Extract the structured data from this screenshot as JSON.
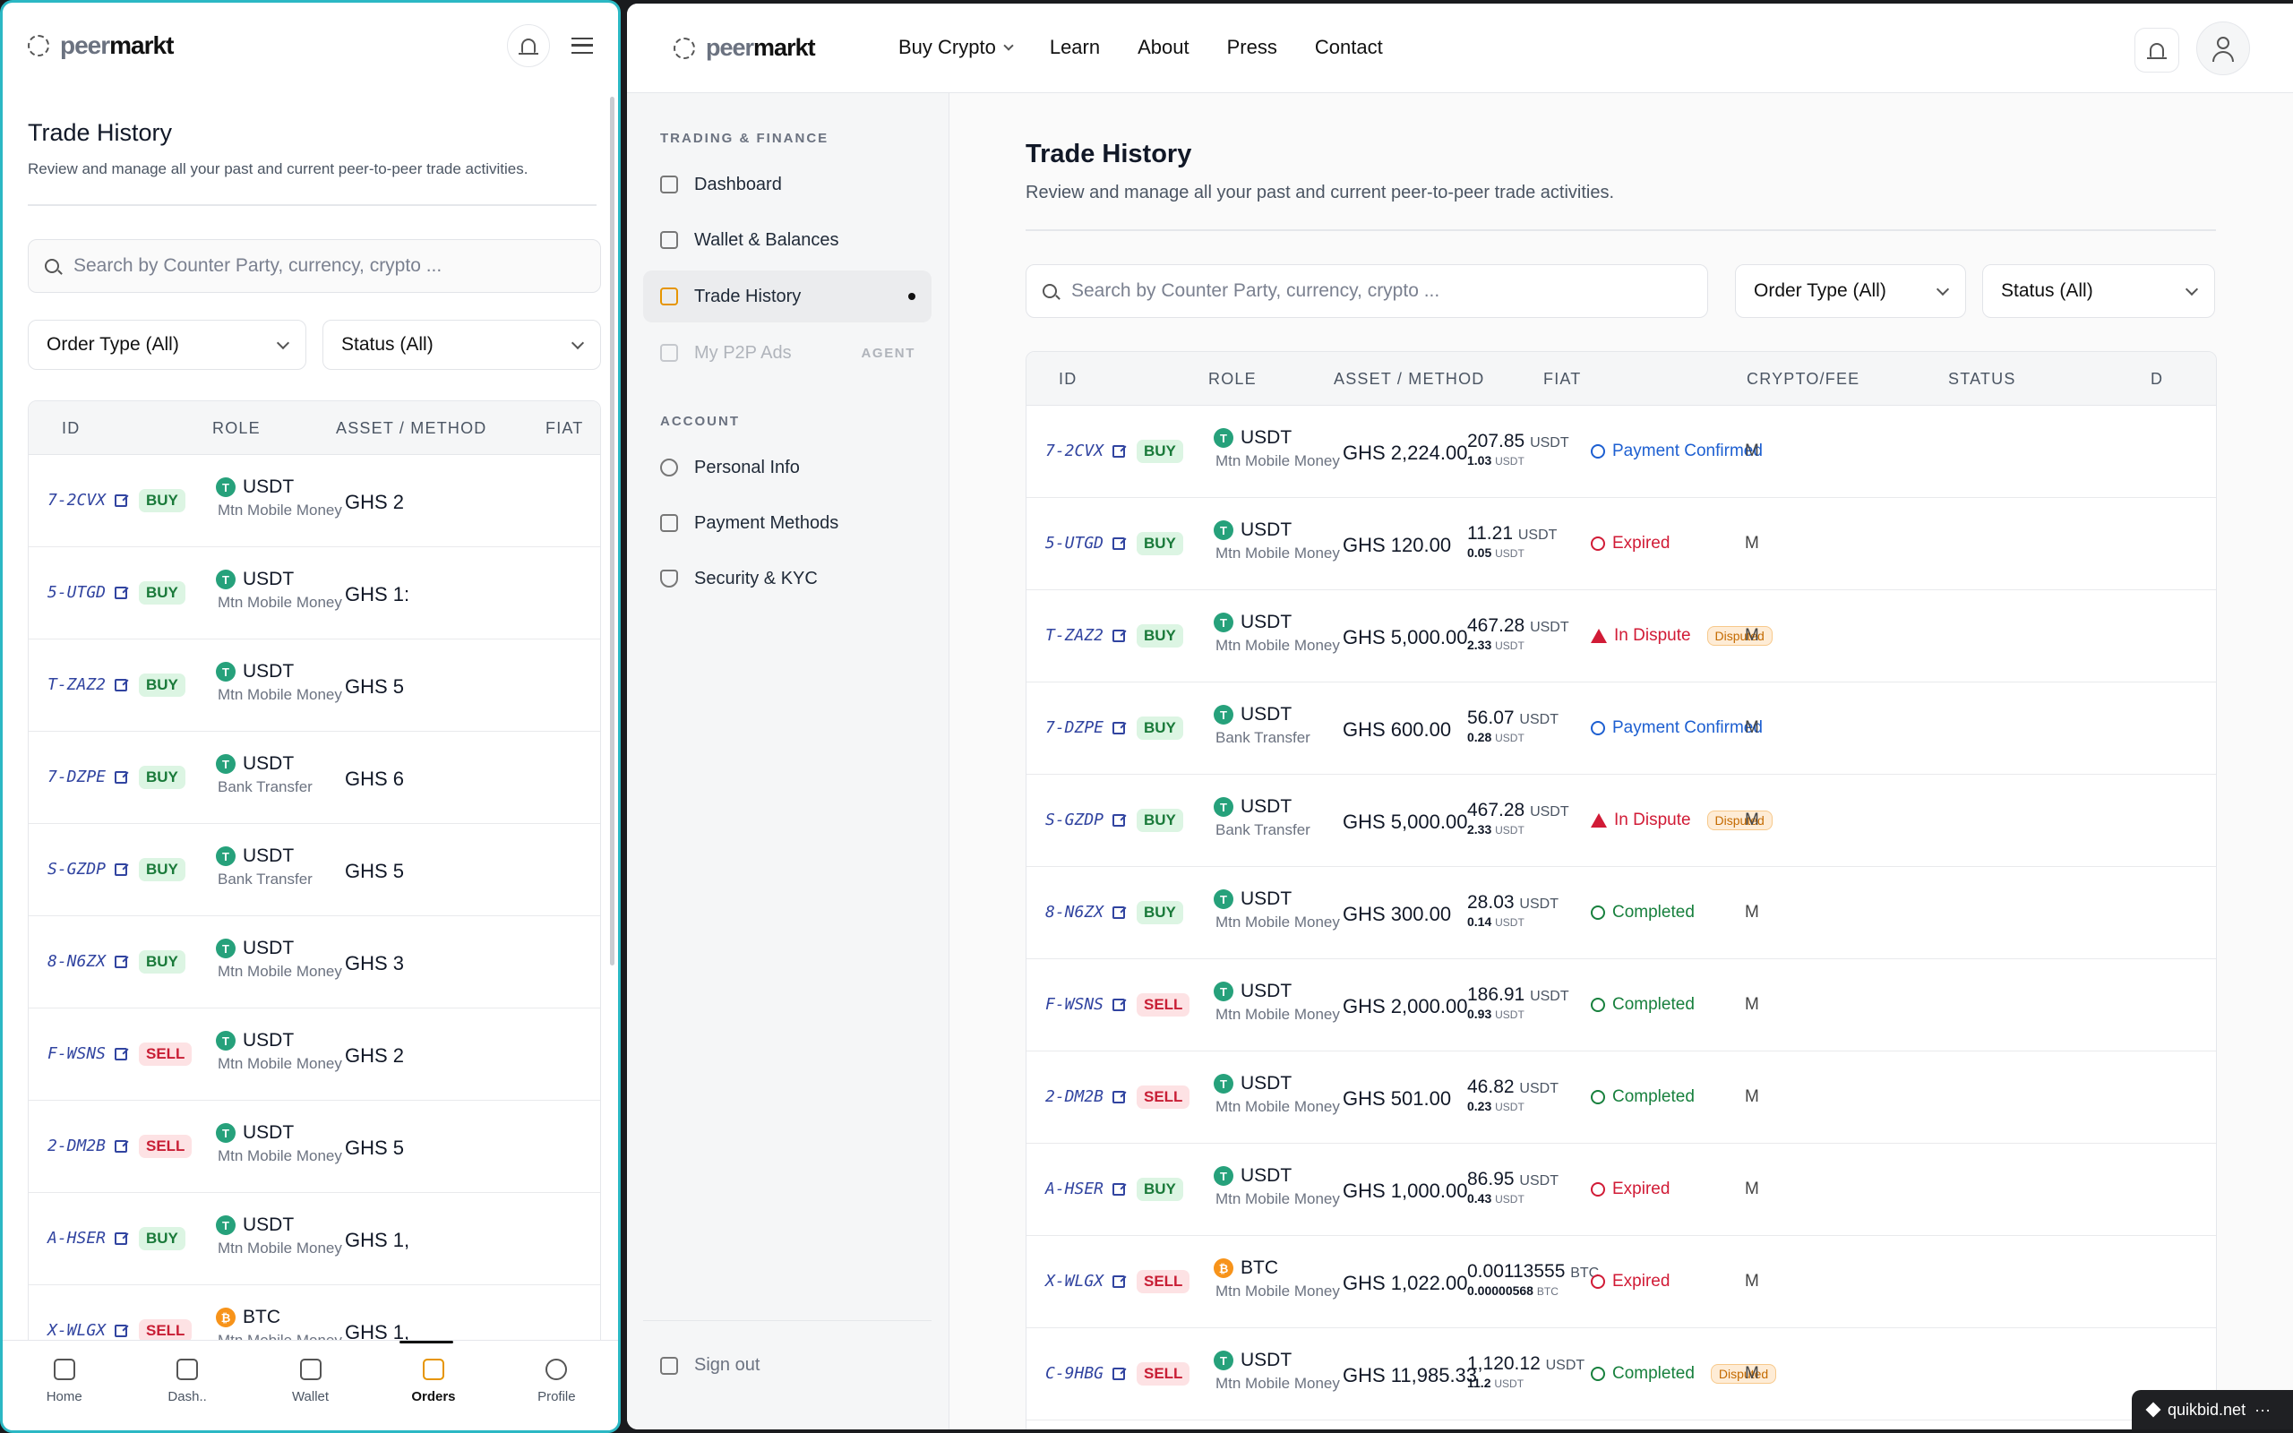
{
  "brand": {
    "part1": "peer",
    "part2": "markt"
  },
  "nav": {
    "items": [
      "Buy Crypto",
      "Learn",
      "About",
      "Press",
      "Contact"
    ]
  },
  "page": {
    "title": "Trade History",
    "subtitle": "Review and manage all your past and current peer-to-peer trade activities.",
    "search_placeholder": "Search by Counter Party, currency, crypto ...",
    "order_type": "Order Type (All)",
    "status_filter": "Status (All)"
  },
  "sidebar": {
    "section1": "TRADING & FINANCE",
    "section2": "ACCOUNT",
    "items": [
      "Dashboard",
      "Wallet & Balances",
      "Trade History",
      "My P2P Ads",
      "Personal Info",
      "Payment Methods",
      "Security & KYC"
    ],
    "agent_tag": "AGENT",
    "signout": "Sign out"
  },
  "table": {
    "headers": [
      "ID",
      "ROLE",
      "ASSET / METHOD",
      "FIAT",
      "CRYPTO/FEE",
      "STATUS",
      "D"
    ],
    "rows": [
      {
        "id": "7-2CVX",
        "role": "BUY",
        "asset": "USDT",
        "coin": "T",
        "method": "Mtn Mobile Money",
        "fiat": "GHS 2,224.00",
        "fiat_cut": "GHS 2",
        "crypto": "207.85",
        "fee": "1.03",
        "unit": "USDT",
        "status": "Payment Confirmed",
        "stype": "pc",
        "disputed": ""
      },
      {
        "id": "5-UTGD",
        "role": "BUY",
        "asset": "USDT",
        "coin": "T",
        "method": "Mtn Mobile Money",
        "fiat": "GHS 120.00",
        "fiat_cut": "GHS 1:",
        "crypto": "11.21",
        "fee": "0.05",
        "unit": "USDT",
        "status": "Expired",
        "stype": "ex",
        "disputed": ""
      },
      {
        "id": "T-ZAZ2",
        "role": "BUY",
        "asset": "USDT",
        "coin": "T",
        "method": "Mtn Mobile Money",
        "fiat": "GHS 5,000.00",
        "fiat_cut": "GHS 5",
        "crypto": "467.28",
        "fee": "2.33",
        "unit": "USDT",
        "status": "In Dispute",
        "stype": "dp",
        "disputed": "Disputed"
      },
      {
        "id": "7-DZPE",
        "role": "BUY",
        "asset": "USDT",
        "coin": "T",
        "method": "Bank Transfer",
        "fiat": "GHS 600.00",
        "fiat_cut": "GHS 6",
        "crypto": "56.07",
        "fee": "0.28",
        "unit": "USDT",
        "status": "Payment Confirmed",
        "stype": "pc",
        "disputed": ""
      },
      {
        "id": "S-GZDP",
        "role": "BUY",
        "asset": "USDT",
        "coin": "T",
        "method": "Bank Transfer",
        "fiat": "GHS 5,000.00",
        "fiat_cut": "GHS 5",
        "crypto": "467.28",
        "fee": "2.33",
        "unit": "USDT",
        "status": "In Dispute",
        "stype": "dp",
        "disputed": "Disputed"
      },
      {
        "id": "8-N6ZX",
        "role": "BUY",
        "asset": "USDT",
        "coin": "T",
        "method": "Mtn Mobile Money",
        "fiat": "GHS 300.00",
        "fiat_cut": "GHS 3",
        "crypto": "28.03",
        "fee": "0.14",
        "unit": "USDT",
        "status": "Completed",
        "stype": "co",
        "disputed": ""
      },
      {
        "id": "F-WSNS",
        "role": "SELL",
        "asset": "USDT",
        "coin": "T",
        "method": "Mtn Mobile Money",
        "fiat": "GHS 2,000.00",
        "fiat_cut": "GHS 2",
        "crypto": "186.91",
        "fee": "0.93",
        "unit": "USDT",
        "status": "Completed",
        "stype": "co",
        "disputed": ""
      },
      {
        "id": "2-DM2B",
        "role": "SELL",
        "asset": "USDT",
        "coin": "T",
        "method": "Mtn Mobile Money",
        "fiat": "GHS 501.00",
        "fiat_cut": "GHS 5",
        "crypto": "46.82",
        "fee": "0.23",
        "unit": "USDT",
        "status": "Completed",
        "stype": "co",
        "disputed": ""
      },
      {
        "id": "A-HSER",
        "role": "BUY",
        "asset": "USDT",
        "coin": "T",
        "method": "Mtn Mobile Money",
        "fiat": "GHS 1,000.00",
        "fiat_cut": "GHS 1,",
        "crypto": "86.95",
        "fee": "0.43",
        "unit": "USDT",
        "status": "Expired",
        "stype": "ex",
        "disputed": ""
      },
      {
        "id": "X-WLGX",
        "role": "SELL",
        "asset": "BTC",
        "coin": "₿",
        "method": "Mtn Mobile Money",
        "fiat": "GHS 1,022.00",
        "fiat_cut": "GHS 1,",
        "crypto": "0.00113555",
        "fee": "0.00000568",
        "unit": "BTC",
        "status": "Expired",
        "stype": "ex",
        "disputed": ""
      },
      {
        "id": "C-9HBG",
        "role": "SELL",
        "asset": "USDT",
        "coin": "T",
        "method": "Mtn Mobile Money",
        "fiat": "GHS 11,985.33",
        "fiat_cut": "GHS 1",
        "crypto": "1,120.12",
        "fee": "11.2",
        "unit": "USDT",
        "status": "Completed",
        "stype": "co",
        "disputed": "Disputed"
      }
    ],
    "date_cut": "M"
  },
  "bottom_nav": [
    "Home",
    "Dash..",
    "Wallet",
    "Orders",
    "Profile"
  ],
  "footer": {
    "brand": "quikbid.net",
    "dots": "···"
  },
  "colors": {
    "accent": "#e69500",
    "link": "#3144a0",
    "buy": "#1a7a3a",
    "sell": "#c81e35",
    "focus_border": "#2bb8c4"
  }
}
